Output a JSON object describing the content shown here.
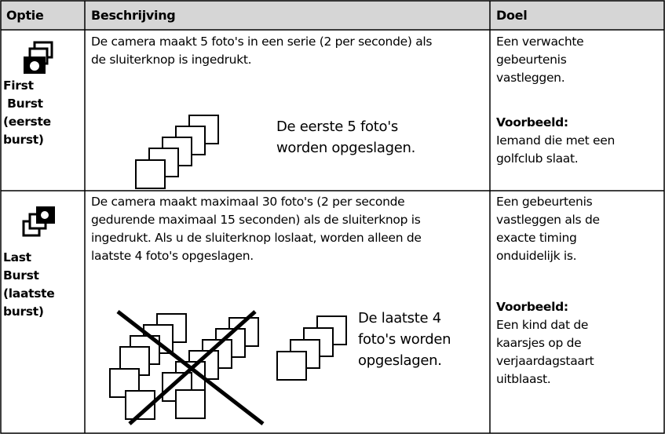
{
  "table": {
    "header": [
      "Optie",
      "Beschrijving",
      "Doel"
    ],
    "rows": [
      {
        "option_lines": [
          "First",
          " Burst",
          "(eerste",
          "burst)"
        ],
        "description_lines": [
          "De camera maakt 5 foto's in een serie (2 per seconde) als",
          "de sluiterknop is ingedrukt."
        ],
        "figure_caption_lines": [
          "De eerste 5 foto's",
          "worden opgeslagen."
        ],
        "goal_lines": [
          "Een verwachte",
          "gebeurtenis",
          "vastleggen."
        ],
        "example_label": "Voorbeeld:",
        "example_lines": [
          "Iemand die met een",
          "golfclub slaat."
        ]
      },
      {
        "option_lines": [
          "Last",
          "Burst",
          "(laatste",
          "burst)"
        ],
        "description_lines": [
          "De camera maakt maximaal 30 foto's (2 per seconde",
          "gedurende maximaal 15 seconden) als de sluiterknop is",
          "ingedrukt. Als u de sluiterknop loslaat, worden alleen de",
          "laatste 4 foto's opgeslagen."
        ],
        "figure_caption_lines": [
          "De laatste 4",
          "foto's worden",
          "opgeslagen."
        ],
        "goal_lines": [
          "Een gebeurtenis",
          "vastleggen als de",
          "exacte timing",
          "onduidelijk is."
        ],
        "example_label": "Voorbeeld:",
        "example_lines": [
          "Een kind dat de",
          "kaarsjes op de",
          "verjaardagstaart",
          "uitblaast."
        ]
      }
    ]
  }
}
